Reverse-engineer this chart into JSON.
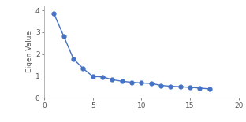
{
  "x": [
    1,
    2,
    3,
    4,
    5,
    6,
    7,
    8,
    9,
    10,
    11,
    12,
    13,
    14,
    15,
    16,
    17
  ],
  "y": [
    3.85,
    2.82,
    1.78,
    1.33,
    0.97,
    0.95,
    0.82,
    0.75,
    0.7,
    0.67,
    0.65,
    0.56,
    0.52,
    0.5,
    0.47,
    0.44,
    0.4
  ],
  "line_color": "#4472C4",
  "marker": "o",
  "marker_size": 3.5,
  "ylabel": "Eigen Value",
  "xlim": [
    0,
    20
  ],
  "ylim": [
    0,
    4.2
  ],
  "xticks": [
    0,
    5,
    10,
    15,
    20
  ],
  "yticks": [
    0,
    1,
    2,
    3,
    4
  ],
  "background_color": "#ffffff",
  "linewidth": 1.0,
  "tick_fontsize": 6.5,
  "ylabel_fontsize": 6.5
}
